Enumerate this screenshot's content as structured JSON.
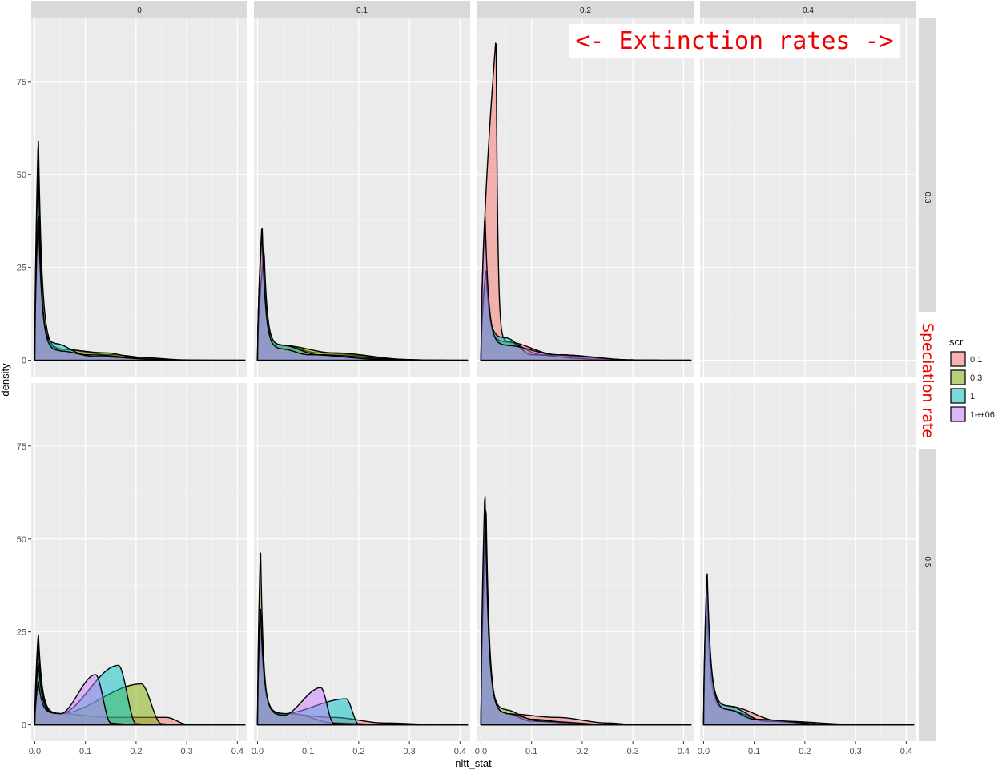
{
  "chart_data": {
    "type": "area",
    "layout": "facet_grid",
    "xlabel": "nltt_stat",
    "ylabel": "density",
    "xlim": [
      -0.007,
      0.42
    ],
    "ylim": [
      -4.4,
      92
    ],
    "x_ticks": [
      0.0,
      0.1,
      0.2,
      0.3,
      0.4
    ],
    "x_tick_labels": [
      "0.0",
      "0.1",
      "0.2",
      "0.3",
      "0.4"
    ],
    "y_ticks": [
      0,
      25,
      50,
      75
    ],
    "y_tick_labels": [
      "0",
      "25",
      "50",
      "75"
    ],
    "grid": true,
    "column_facets": [
      "0",
      "0.1",
      "0.2",
      "0.4"
    ],
    "row_facets": [
      "0.3",
      "0.5"
    ],
    "legend": {
      "title": "scr",
      "position": "right",
      "entries": [
        {
          "label": "0.1",
          "color": "#F8766D"
        },
        {
          "label": "0.3",
          "color": "#7CAE00"
        },
        {
          "label": "1",
          "color": "#00BFC4"
        },
        {
          "label": "1e+06",
          "color": "#C77CFF"
        }
      ]
    },
    "fill_alpha": 0.5,
    "panels": [
      {
        "row": "0.3",
        "col": "0",
        "series": [
          {
            "name": "0.1",
            "peak_x": 0.007,
            "peak": 40,
            "tail": [
              [
                0.05,
                3
              ],
              [
                0.15,
                1.5
              ],
              [
                0.25,
                0.3
              ]
            ]
          },
          {
            "name": "0.3",
            "peak_x": 0.007,
            "peak": 61,
            "tail": [
              [
                0.05,
                3
              ],
              [
                0.14,
                2
              ],
              [
                0.2,
                0.8
              ],
              [
                0.3,
                0.1
              ]
            ]
          },
          {
            "name": "1",
            "peak_x": 0.007,
            "peak": 55,
            "tail": [
              [
                0.04,
                4.5
              ],
              [
                0.1,
                1.5
              ],
              [
                0.25,
                0.2
              ]
            ]
          },
          {
            "name": "1e+06",
            "peak_x": 0.007,
            "peak": 40,
            "tail": [
              [
                0.05,
                2.5
              ],
              [
                0.12,
                1
              ],
              [
                0.25,
                0.2
              ]
            ]
          }
        ]
      },
      {
        "row": "0.3",
        "col": "0.1",
        "series": [
          {
            "name": "0.1",
            "peak_x": 0.009,
            "peak": 35,
            "tail": [
              [
                0.05,
                4
              ],
              [
                0.12,
                2
              ],
              [
                0.3,
                0.2
              ]
            ]
          },
          {
            "name": "0.3",
            "peak_x": 0.009,
            "peak": 37,
            "tail": [
              [
                0.05,
                4
              ],
              [
                0.15,
                2
              ],
              [
                0.3,
                0.2
              ]
            ]
          },
          {
            "name": "1",
            "peak_x": 0.013,
            "peak": 30,
            "tail": [
              [
                0.05,
                4
              ],
              [
                0.12,
                1.5
              ],
              [
                0.3,
                0.1
              ]
            ]
          },
          {
            "name": "1e+06",
            "peak_x": 0.009,
            "peak": 35,
            "tail": [
              [
                0.05,
                3
              ],
              [
                0.1,
                1.5
              ],
              [
                0.25,
                0.2
              ]
            ]
          }
        ]
      },
      {
        "row": "0.3",
        "col": "0.2",
        "series": [
          {
            "name": "0.1",
            "peak_x": 0.03,
            "peak": 87,
            "tail": [
              [
                0.05,
                5
              ],
              [
                0.15,
                1.5
              ],
              [
                0.3,
                0.1
              ]
            ]
          },
          {
            "name": "0.3",
            "peak_x": 0.01,
            "peak": 25,
            "tail": [
              [
                0.05,
                5
              ],
              [
                0.12,
                1.5
              ],
              [
                0.3,
                0.1
              ]
            ]
          },
          {
            "name": "1",
            "peak_x": 0.01,
            "peak": 25,
            "tail": [
              [
                0.05,
                6
              ],
              [
                0.1,
                1.5
              ],
              [
                0.2,
                0.5
              ]
            ]
          },
          {
            "name": "1e+06",
            "peak_x": 0.008,
            "peak": 40,
            "tail": [
              [
                0.05,
                4
              ],
              [
                0.15,
                1.5
              ],
              [
                0.3,
                0.1
              ]
            ]
          }
        ]
      },
      {
        "row": "0.3",
        "col": "0.4",
        "series": []
      },
      {
        "row": "0.5",
        "col": "0",
        "series": [
          {
            "name": "0.1",
            "peak_x": 0.007,
            "peak": 25,
            "tail": [
              [
                0.05,
                3
              ],
              [
                0.15,
                2
              ],
              [
                0.26,
                2
              ],
              [
                0.3,
                0.2
              ]
            ]
          },
          {
            "name": "0.3",
            "peak_x": 0.007,
            "peak": 22,
            "tail": [
              [
                0.05,
                3
              ],
              [
                0.21,
                11
              ],
              [
                0.25,
                0.3
              ]
            ]
          },
          {
            "name": "1",
            "peak_x": 0.007,
            "peak": 17,
            "tail": [
              [
                0.05,
                3
              ],
              [
                0.165,
                16
              ],
              [
                0.2,
                0.3
              ]
            ]
          },
          {
            "name": "1e+06",
            "peak_x": 0.007,
            "peak": 12,
            "tail": [
              [
                0.05,
                3
              ],
              [
                0.12,
                13.5
              ],
              [
                0.15,
                0.5
              ]
            ]
          }
        ]
      },
      {
        "row": "0.5",
        "col": "0.1",
        "series": [
          {
            "name": "0.1",
            "peak_x": 0.006,
            "peak": 25,
            "tail": [
              [
                0.05,
                3
              ],
              [
                0.15,
                2
              ],
              [
                0.25,
                0.5
              ],
              [
                0.35,
                0.1
              ]
            ]
          },
          {
            "name": "0.3",
            "peak_x": 0.006,
            "peak": 48,
            "tail": [
              [
                0.04,
                3
              ],
              [
                0.07,
                3
              ],
              [
                0.15,
                0.5
              ],
              [
                0.25,
                0.1
              ]
            ]
          },
          {
            "name": "1",
            "peak_x": 0.006,
            "peak": 30,
            "tail": [
              [
                0.05,
                3
              ],
              [
                0.175,
                7
              ],
              [
                0.2,
                0.2
              ]
            ]
          },
          {
            "name": "1e+06",
            "peak_x": 0.006,
            "peak": 32,
            "tail": [
              [
                0.05,
                2.5
              ],
              [
                0.125,
                10
              ],
              [
                0.15,
                0.5
              ]
            ]
          }
        ]
      },
      {
        "row": "0.5",
        "col": "0.2",
        "series": [
          {
            "name": "0.1",
            "peak_x": 0.01,
            "peak": 55,
            "tail": [
              [
                0.05,
                3
              ],
              [
                0.15,
                2
              ],
              [
                0.25,
                0.5
              ],
              [
                0.3,
                0.1
              ]
            ]
          },
          {
            "name": "0.3",
            "peak_x": 0.01,
            "peak": 50,
            "tail": [
              [
                0.05,
                4
              ],
              [
                0.1,
                1.5
              ],
              [
                0.2,
                0.2
              ]
            ]
          },
          {
            "name": "1",
            "peak_x": 0.01,
            "peak": 60,
            "tail": [
              [
                0.05,
                3
              ],
              [
                0.1,
                1
              ],
              [
                0.2,
                0.2
              ]
            ]
          },
          {
            "name": "1e+06",
            "peak_x": 0.008,
            "peak": 64,
            "tail": [
              [
                0.05,
                3
              ],
              [
                0.12,
                1
              ],
              [
                0.25,
                0.1
              ]
            ]
          }
        ]
      },
      {
        "row": "0.5",
        "col": "0.4",
        "series": [
          {
            "name": "0.1",
            "peak_x": 0.007,
            "peak": 35,
            "tail": [
              [
                0.05,
                5
              ],
              [
                0.15,
                1
              ],
              [
                0.3,
                0.1
              ]
            ]
          },
          {
            "name": "0.3",
            "peak_x": 0.007,
            "peak": 30,
            "tail": [
              [
                0.05,
                4
              ],
              [
                0.12,
                1
              ],
              [
                0.25,
                0.1
              ]
            ]
          },
          {
            "name": "1",
            "peak_x": 0.007,
            "peak": 40,
            "tail": [
              [
                0.05,
                5
              ],
              [
                0.12,
                1
              ],
              [
                0.25,
                0.1
              ]
            ]
          },
          {
            "name": "1e+06",
            "peak_x": 0.007,
            "peak": 42,
            "tail": [
              [
                0.05,
                4
              ],
              [
                0.1,
                1.5
              ],
              [
                0.25,
                0.1
              ]
            ]
          }
        ]
      }
    ]
  },
  "annotations": {
    "top": "<- Extinction rates ->",
    "side": "Speciation rate"
  }
}
